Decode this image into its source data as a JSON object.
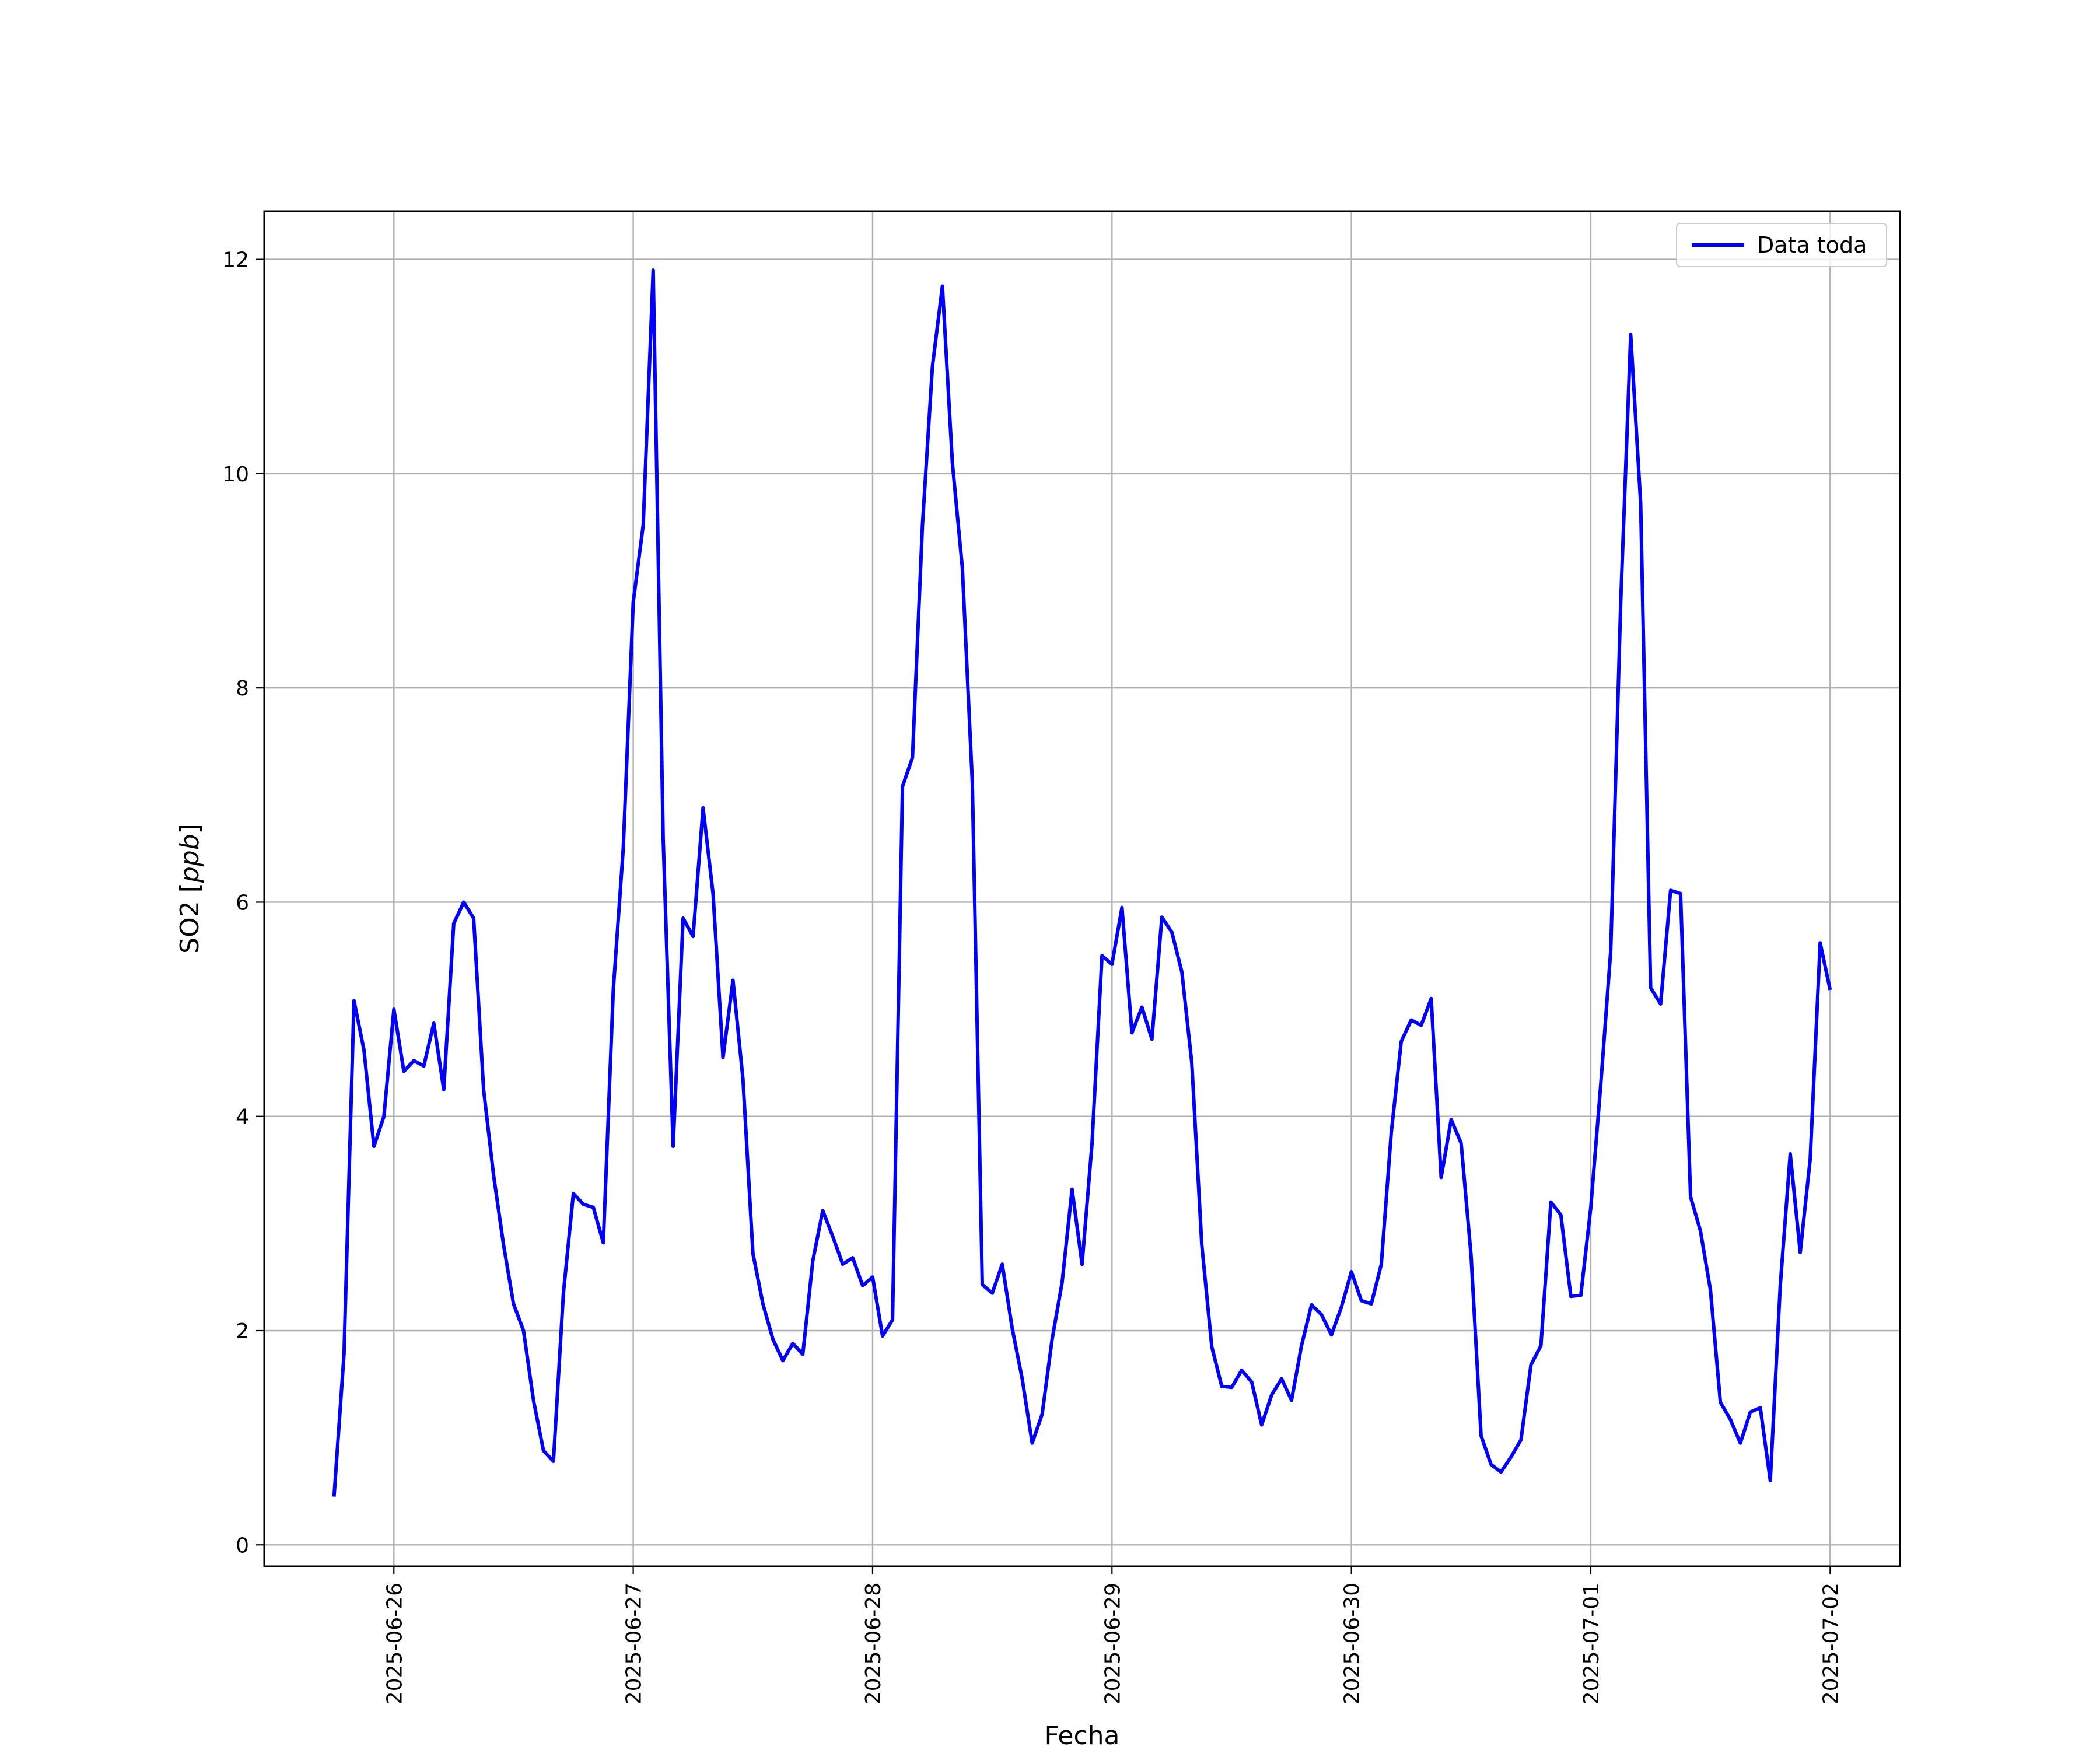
{
  "chart_data": {
    "type": "line",
    "title": "",
    "xlabel": "Fecha",
    "ylabel_prefix": "SO2 [",
    "ylabel_unit": "ppb",
    "ylabel_suffix": "]",
    "xlim": [
      "2025-06-25 11:00",
      "2025-07-02 07:00"
    ],
    "ylim": [
      -0.2,
      12.45
    ],
    "grid": true,
    "legend_position": "top-right",
    "x_ticks": [
      "2025-06-26",
      "2025-06-27",
      "2025-06-28",
      "2025-06-29",
      "2025-06-30",
      "2025-07-01",
      "2025-07-02"
    ],
    "y_ticks": [
      0,
      2,
      4,
      6,
      8,
      10,
      12
    ],
    "series": [
      {
        "name": "Data toda",
        "color": "#0000ff",
        "x_start": "2025-06-25 18:00",
        "x_step_hours": 1,
        "values": [
          0.45,
          1.78,
          5.08,
          4.62,
          3.72,
          4.0,
          5.0,
          4.42,
          4.52,
          4.47,
          4.87,
          4.25,
          5.8,
          6.0,
          5.85,
          4.25,
          3.45,
          2.8,
          2.25,
          2.0,
          1.35,
          0.88,
          0.78,
          2.35,
          3.28,
          3.18,
          3.15,
          2.82,
          5.18,
          6.5,
          8.8,
          9.52,
          11.9,
          6.6,
          3.72,
          5.85,
          5.68,
          6.88,
          6.08,
          4.55,
          5.27,
          4.35,
          2.72,
          2.25,
          1.92,
          1.72,
          1.88,
          1.78,
          2.65,
          3.12,
          2.88,
          2.62,
          2.68,
          2.42,
          2.5,
          1.95,
          2.1,
          7.08,
          7.35,
          9.52,
          11.0,
          11.75,
          10.1,
          9.12,
          7.12,
          2.43,
          2.35,
          2.62,
          2.02,
          1.55,
          0.95,
          1.22,
          1.92,
          2.45,
          3.32,
          2.62,
          3.75,
          5.5,
          5.42,
          5.95,
          4.78,
          5.02,
          4.72,
          5.86,
          5.72,
          5.35,
          4.5,
          2.8,
          1.85,
          1.48,
          1.47,
          1.63,
          1.52,
          1.12,
          1.4,
          1.55,
          1.35,
          1.86,
          2.24,
          2.15,
          1.96,
          2.22,
          2.55,
          2.28,
          2.25,
          2.62,
          3.85,
          4.7,
          4.9,
          4.85,
          5.1,
          3.43,
          3.97,
          3.75,
          2.7,
          1.02,
          0.75,
          0.68,
          0.82,
          0.98,
          1.68,
          1.86,
          3.2,
          3.08,
          2.32,
          2.33,
          3.15,
          4.3,
          5.55,
          8.8,
          11.3,
          9.72,
          5.2,
          5.05,
          6.11,
          6.08,
          3.25,
          2.93,
          2.38,
          1.33,
          1.17,
          0.95,
          1.24,
          1.28,
          0.6,
          2.42,
          3.65,
          2.73,
          3.6,
          5.62,
          5.18
        ]
      }
    ]
  }
}
